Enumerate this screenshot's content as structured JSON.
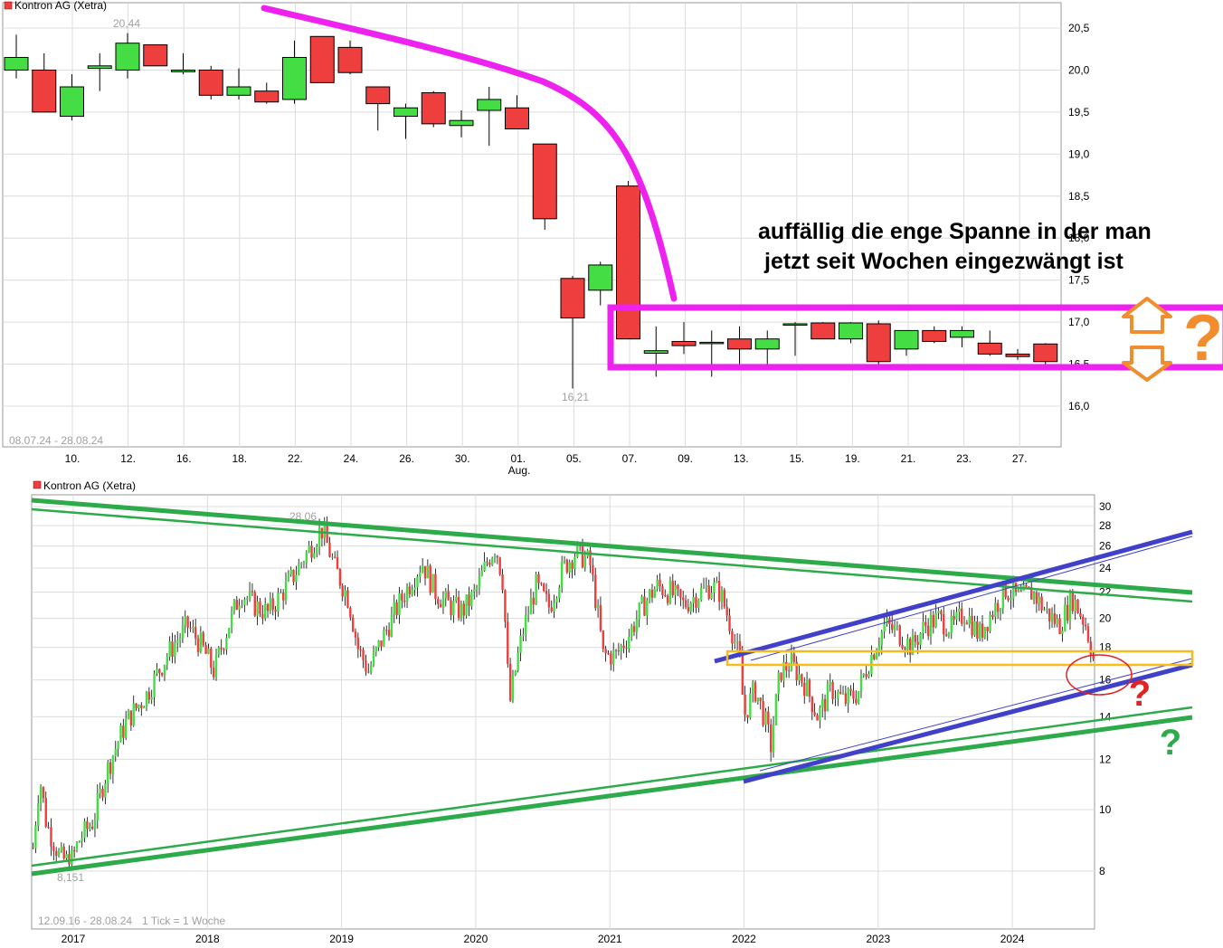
{
  "chart_data": [
    {
      "type": "candlestick",
      "legend": "Kontron AG (Xetra)",
      "range_label": "08.07.24 - 28.08.24",
      "ylim": [
        15.5,
        20.6
      ],
      "y_ticks": [
        "20,5",
        "20,0",
        "19,5",
        "19,0",
        "18,5",
        "18,0",
        "17,5",
        "17,0",
        "16,5",
        "16,0"
      ],
      "x_tick_labels": [
        "10.",
        "12.",
        "16.",
        "18.",
        "22.",
        "24.",
        "26.",
        "30.",
        "01.",
        "05.",
        "07.",
        "09.",
        "13.",
        "15.",
        "19.",
        "21.",
        "23.",
        "27."
      ],
      "x_sublabel": "Aug.",
      "high_label": "20,44",
      "low_label": "16,21",
      "candles": [
        {
          "o": 20.0,
          "h": 20.42,
          "l": 19.9,
          "c": 20.15
        },
        {
          "o": 20.0,
          "h": 20.2,
          "l": 19.5,
          "c": 19.5
        },
        {
          "o": 19.45,
          "h": 19.95,
          "l": 19.4,
          "c": 19.8
        },
        {
          "o": 20.02,
          "h": 20.2,
          "l": 19.75,
          "c": 20.05
        },
        {
          "o": 20.0,
          "h": 20.44,
          "l": 19.9,
          "c": 20.32
        },
        {
          "o": 20.3,
          "h": 20.3,
          "l": 20.05,
          "c": 20.05
        },
        {
          "o": 19.98,
          "h": 20.2,
          "l": 19.95,
          "c": 20.0
        },
        {
          "o": 20.0,
          "h": 20.05,
          "l": 19.65,
          "c": 19.7
        },
        {
          "o": 19.7,
          "h": 20.02,
          "l": 19.65,
          "c": 19.8
        },
        {
          "o": 19.75,
          "h": 19.85,
          "l": 19.6,
          "c": 19.62
        },
        {
          "o": 19.65,
          "h": 20.35,
          "l": 19.6,
          "c": 20.15
        },
        {
          "o": 20.4,
          "h": 20.4,
          "l": 19.85,
          "c": 19.85
        },
        {
          "o": 20.27,
          "h": 20.35,
          "l": 19.95,
          "c": 19.97
        },
        {
          "o": 19.8,
          "h": 19.8,
          "l": 19.28,
          "c": 19.6
        },
        {
          "o": 19.45,
          "h": 19.6,
          "l": 19.18,
          "c": 19.55
        },
        {
          "o": 19.73,
          "h": 19.75,
          "l": 19.32,
          "c": 19.36
        },
        {
          "o": 19.34,
          "h": 19.52,
          "l": 19.2,
          "c": 19.4
        },
        {
          "o": 19.52,
          "h": 19.8,
          "l": 19.1,
          "c": 19.65
        },
        {
          "o": 19.55,
          "h": 19.7,
          "l": 19.3,
          "c": 19.3
        },
        {
          "o": 19.12,
          "h": 19.12,
          "l": 18.1,
          "c": 18.23
        },
        {
          "o": 17.52,
          "h": 17.55,
          "l": 16.21,
          "c": 17.05
        },
        {
          "o": 17.38,
          "h": 17.72,
          "l": 17.2,
          "c": 17.68
        },
        {
          "o": 18.62,
          "h": 18.68,
          "l": 16.8,
          "c": 16.8
        },
        {
          "o": 16.63,
          "h": 16.95,
          "l": 16.35,
          "c": 16.66
        },
        {
          "o": 16.77,
          "h": 17.0,
          "l": 16.62,
          "c": 16.72
        },
        {
          "o": 16.75,
          "h": 16.9,
          "l": 16.35,
          "c": 16.76
        },
        {
          "o": 16.8,
          "h": 16.95,
          "l": 16.5,
          "c": 16.68
        },
        {
          "o": 16.68,
          "h": 16.9,
          "l": 16.5,
          "c": 16.8
        },
        {
          "o": 16.98,
          "h": 17.0,
          "l": 16.6,
          "c": 16.98
        },
        {
          "o": 16.99,
          "h": 17.0,
          "l": 16.8,
          "c": 16.8
        },
        {
          "o": 16.8,
          "h": 17.0,
          "l": 16.75,
          "c": 16.99
        },
        {
          "o": 16.98,
          "h": 17.02,
          "l": 16.5,
          "c": 16.53
        },
        {
          "o": 16.68,
          "h": 16.9,
          "l": 16.6,
          "c": 16.9
        },
        {
          "o": 16.9,
          "h": 16.95,
          "l": 16.75,
          "c": 16.77
        },
        {
          "o": 16.82,
          "h": 16.95,
          "l": 16.7,
          "c": 16.9
        },
        {
          "o": 16.75,
          "h": 16.9,
          "l": 16.6,
          "c": 16.62
        },
        {
          "o": 16.62,
          "h": 16.68,
          "l": 16.55,
          "c": 16.59
        },
        {
          "o": 16.74,
          "h": 16.75,
          "l": 16.45,
          "c": 16.53
        }
      ]
    },
    {
      "type": "candlestick",
      "legend": "Kontron AG (Xetra)",
      "range_label": "12.09.16 - 28.08.24",
      "tick_note": "1 Tick = 1 Woche",
      "log_scale": true,
      "ylim": [
        7.2,
        31
      ],
      "y_ticks": [
        30,
        28,
        26,
        24,
        22,
        20,
        18,
        16,
        14,
        12,
        10,
        8
      ],
      "x_tick_labels": [
        "2017",
        "2018",
        "2019",
        "2020",
        "2021",
        "2022",
        "2023",
        "2024"
      ],
      "high_label": "28,06",
      "low_label": "8,151",
      "path": [
        [
          2016.7,
          8.7
        ],
        [
          2016.75,
          11.2
        ],
        [
          2016.8,
          9.5
        ],
        [
          2016.9,
          8.4
        ],
        [
          2016.98,
          8.25
        ],
        [
          2017.05,
          9.0
        ],
        [
          2017.15,
          9.6
        ],
        [
          2017.25,
          11.5
        ],
        [
          2017.4,
          13.8
        ],
        [
          2017.55,
          15.2
        ],
        [
          2017.7,
          17.5
        ],
        [
          2017.85,
          19.5
        ],
        [
          2017.95,
          18.2
        ],
        [
          2018.05,
          16.5
        ],
        [
          2018.15,
          19.3
        ],
        [
          2018.25,
          22.0
        ],
        [
          2018.35,
          21.0
        ],
        [
          2018.45,
          20.4
        ],
        [
          2018.55,
          21.8
        ],
        [
          2018.65,
          23.5
        ],
        [
          2018.75,
          25.5
        ],
        [
          2018.85,
          27.7
        ],
        [
          2018.95,
          24.0
        ],
        [
          2019.05,
          21.5
        ],
        [
          2019.12,
          18.0
        ],
        [
          2019.2,
          16.5
        ],
        [
          2019.3,
          18.5
        ],
        [
          2019.4,
          20.5
        ],
        [
          2019.5,
          22.5
        ],
        [
          2019.6,
          24.5
        ],
        [
          2019.7,
          22.0
        ],
        [
          2019.8,
          21.0
        ],
        [
          2019.9,
          20.5
        ],
        [
          2020.0,
          22.0
        ],
        [
          2020.1,
          25.0
        ],
        [
          2020.15,
          26.0
        ],
        [
          2020.2,
          23.0
        ],
        [
          2020.25,
          14.5
        ],
        [
          2020.35,
          19.0
        ],
        [
          2020.45,
          22.5
        ],
        [
          2020.55,
          20.8
        ],
        [
          2020.65,
          24.0
        ],
        [
          2020.75,
          25.5
        ],
        [
          2020.85,
          24.5
        ],
        [
          2020.95,
          17.5
        ],
        [
          2021.05,
          17.5
        ],
        [
          2021.15,
          19.0
        ],
        [
          2021.25,
          21.0
        ],
        [
          2021.35,
          22.5
        ],
        [
          2021.45,
          22.0
        ],
        [
          2021.55,
          21.0
        ],
        [
          2021.65,
          21.8
        ],
        [
          2021.75,
          22.5
        ],
        [
          2021.82,
          22.0
        ],
        [
          2021.9,
          19.5
        ],
        [
          2021.97,
          17.0
        ],
        [
          2022.0,
          14.0
        ],
        [
          2022.08,
          15.5
        ],
        [
          2022.15,
          14.0
        ],
        [
          2022.2,
          12.6
        ],
        [
          2022.27,
          16.5
        ],
        [
          2022.35,
          17.0
        ],
        [
          2022.45,
          15.8
        ],
        [
          2022.55,
          14.0
        ],
        [
          2022.65,
          15.5
        ],
        [
          2022.75,
          14.8
        ],
        [
          2022.85,
          15.3
        ],
        [
          2022.95,
          17.5
        ],
        [
          2023.05,
          19.5
        ],
        [
          2023.15,
          19.0
        ],
        [
          2023.25,
          18.0
        ],
        [
          2023.35,
          19.5
        ],
        [
          2023.45,
          20.0
        ],
        [
          2023.55,
          19.3
        ],
        [
          2023.65,
          20.5
        ],
        [
          2023.75,
          18.8
        ],
        [
          2023.85,
          20.5
        ],
        [
          2023.95,
          22.2
        ],
        [
          2024.05,
          21.5
        ],
        [
          2024.15,
          22.0
        ],
        [
          2024.25,
          20.5
        ],
        [
          2024.35,
          19.5
        ],
        [
          2024.45,
          21.5
        ],
        [
          2024.55,
          19.5
        ],
        [
          2024.62,
          16.6
        ]
      ]
    }
  ],
  "annotations": {
    "note_line1": "auffällig die enge Spanne in der man",
    "note_line2": "jetzt seit Wochen eingezwängt ist",
    "question_mark": "?",
    "question_red": "?",
    "question_green": "?"
  },
  "colors": {
    "up": "#44dd44",
    "down": "#ee3e3e",
    "magenta": "#ee22ee",
    "orange": "#f28d2e",
    "blue": "#4040c8",
    "green": "#2daa4a",
    "yellow": "#f5bc1c",
    "red_q": "#e42222",
    "grid": "#dcdcdc"
  }
}
